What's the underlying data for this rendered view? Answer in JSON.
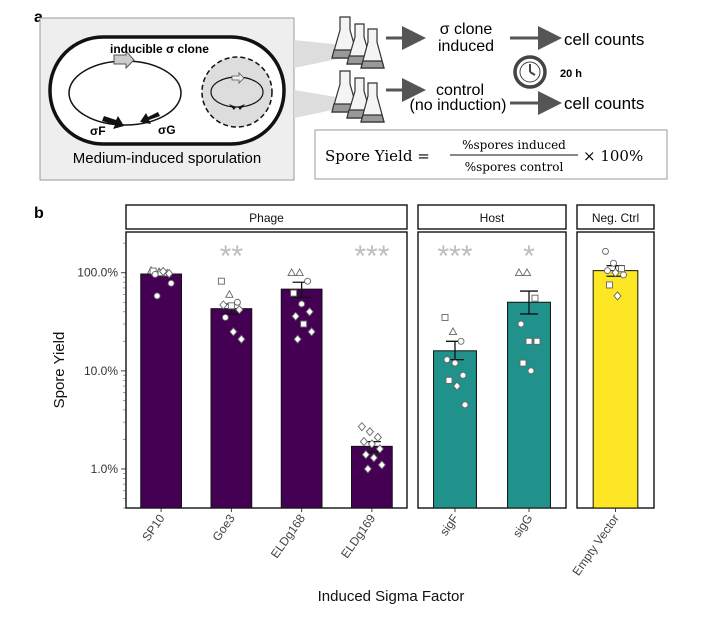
{
  "panel_a": {
    "label": "a",
    "clone_label": "inducible σ clone",
    "gene_f": "σF",
    "gene_g": "σG",
    "medium_label": "Medium-induced sporulation",
    "row1_text_1": "σ clone",
    "row1_text_2": "induced",
    "row2_text_1": "control",
    "row2_text_2": "(no induction)",
    "result_1": "cell counts",
    "result_2": "cell counts",
    "time_label": "20 h",
    "formula_lhs": "Spore Yield =",
    "formula_numerator": "%spores induced",
    "formula_denominator": "%spores control",
    "formula_rhs": "× 100%"
  },
  "panel_b": {
    "label": "b"
  },
  "chart_data": {
    "type": "bar",
    "ylabel": "Spore Yield",
    "xlabel": "Induced Sigma Factor",
    "yscale": "log",
    "ylim": [
      0.004,
      2.6
    ],
    "yticks": [
      0.01,
      0.1,
      1.0
    ],
    "ytick_labels": [
      "1.0%",
      "10.0%",
      "100.0%"
    ],
    "facets": [
      {
        "name": "Phage",
        "color": "#440154",
        "categories": [
          "SP10",
          "Goe3",
          "ELDg168",
          "ELDg169"
        ],
        "values": [
          0.97,
          0.43,
          0.68,
          0.017
        ],
        "errors": [
          [
            0.93,
            1.02
          ],
          [
            0.38,
            0.48
          ],
          [
            0.56,
            0.8
          ],
          [
            0.015,
            0.019
          ]
        ],
        "significance": [
          "",
          "**",
          "",
          "***"
        ],
        "points": [
          [
            [
              1.05,
              "triangle"
            ],
            [
              1.02,
              "triangle"
            ],
            [
              0.99,
              "triangle"
            ],
            [
              1.04,
              "square"
            ],
            [
              1.0,
              "square"
            ],
            [
              0.98,
              "diamond"
            ],
            [
              0.96,
              "circle"
            ],
            [
              1.03,
              "diamond"
            ],
            [
              0.78,
              "circle"
            ],
            [
              0.58,
              "circle"
            ]
          ],
          [
            [
              0.82,
              "square"
            ],
            [
              0.6,
              "triangle"
            ],
            [
              0.5,
              "circle"
            ],
            [
              0.47,
              "diamond"
            ],
            [
              0.46,
              "square"
            ],
            [
              0.42,
              "diamond"
            ],
            [
              0.35,
              "circle"
            ],
            [
              0.25,
              "diamond"
            ],
            [
              0.21,
              "diamond"
            ]
          ],
          [
            [
              1.0,
              "triangle"
            ],
            [
              1.0,
              "triangle"
            ],
            [
              0.82,
              "circle"
            ],
            [
              0.62,
              "square"
            ],
            [
              0.48,
              "circle"
            ],
            [
              0.4,
              "diamond"
            ],
            [
              0.36,
              "diamond"
            ],
            [
              0.3,
              "square"
            ],
            [
              0.25,
              "diamond"
            ],
            [
              0.21,
              "diamond"
            ]
          ],
          [
            [
              0.027,
              "diamond"
            ],
            [
              0.024,
              "diamond"
            ],
            [
              0.021,
              "diamond"
            ],
            [
              0.019,
              "diamond"
            ],
            [
              0.018,
              "diamond"
            ],
            [
              0.016,
              "diamond"
            ],
            [
              0.014,
              "diamond"
            ],
            [
              0.013,
              "diamond"
            ],
            [
              0.011,
              "diamond"
            ],
            [
              0.01,
              "diamond"
            ]
          ]
        ]
      },
      {
        "name": "Host",
        "color": "#21918c",
        "categories": [
          "sigF",
          "sigG"
        ],
        "values": [
          0.16,
          0.5
        ],
        "errors": [
          [
            0.13,
            0.2
          ],
          [
            0.38,
            0.65
          ]
        ],
        "significance": [
          "***",
          "*"
        ],
        "points": [
          [
            [
              0.35,
              "square"
            ],
            [
              0.25,
              "triangle"
            ],
            [
              0.2,
              "circle"
            ],
            [
              0.13,
              "circle"
            ],
            [
              0.12,
              "circle"
            ],
            [
              0.09,
              "circle"
            ],
            [
              0.08,
              "square"
            ],
            [
              0.07,
              "diamond"
            ],
            [
              0.045,
              "circle"
            ]
          ],
          [
            [
              1.0,
              "triangle"
            ],
            [
              1.0,
              "triangle"
            ],
            [
              0.55,
              "square"
            ],
            [
              0.3,
              "circle"
            ],
            [
              0.2,
              "square"
            ],
            [
              0.2,
              "square"
            ],
            [
              0.12,
              "square"
            ],
            [
              0.1,
              "circle"
            ]
          ]
        ]
      },
      {
        "name": "Neg. Ctrl",
        "color": "#fde725",
        "categories": [
          "Empty Vector"
        ],
        "values": [
          1.05
        ],
        "errors": [
          [
            0.92,
            1.18
          ]
        ],
        "significance": [
          ""
        ],
        "points": [
          [
            [
              1.65,
              "circle"
            ],
            [
              1.25,
              "circle"
            ],
            [
              1.1,
              "square"
            ],
            [
              1.05,
              "circle"
            ],
            [
              1.0,
              "diamond"
            ],
            [
              0.95,
              "circle"
            ],
            [
              0.75,
              "square"
            ],
            [
              0.58,
              "diamond"
            ]
          ]
        ]
      }
    ]
  }
}
